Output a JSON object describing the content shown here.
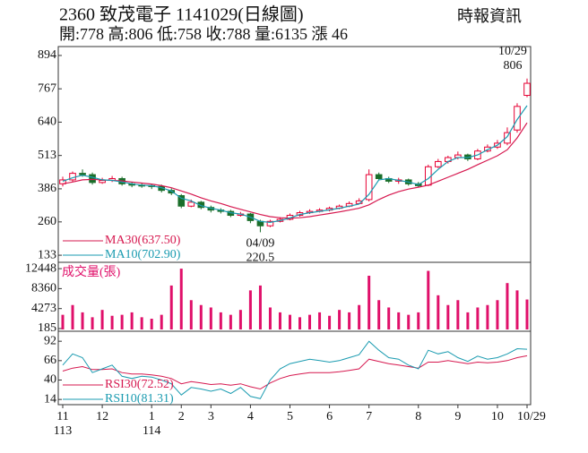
{
  "chart_data": [
    {
      "type": "candlestick",
      "title": "2360  致茂電子 1141029(日線圖)",
      "subtitle": "開:778 高:806 低:758 收:788 量:6135 漲 46",
      "source": "時報資訊",
      "categories": [
        "11",
        null,
        null,
        null,
        "12",
        null,
        null,
        null,
        null,
        "1",
        null,
        null,
        "2",
        null,
        null,
        "3",
        null,
        null,
        null,
        "4",
        null,
        null,
        null,
        "5",
        null,
        null,
        null,
        "6",
        null,
        null,
        null,
        "7",
        null,
        null,
        null,
        null,
        "8",
        null,
        null,
        null,
        "9",
        null,
        null,
        null,
        "10",
        null,
        null,
        "10/29"
      ],
      "year_labels": [
        {
          "index": 0,
          "label": "113"
        },
        {
          "index": 9,
          "label": "114"
        }
      ],
      "open": [
        405,
        420,
        445,
        440,
        410,
        418,
        425,
        405,
        400,
        398,
        395,
        380,
        360,
        320,
        335,
        315,
        305,
        300,
        285,
        290,
        262,
        245,
        262,
        270,
        285,
        295,
        300,
        305,
        312,
        320,
        330,
        345,
        440,
        425,
        415,
        420,
        405,
        400,
        470,
        490,
        505,
        515,
        500,
        530,
        545,
        560,
        610,
        742
      ],
      "high": [
        432,
        452,
        460,
        448,
        428,
        435,
        432,
        412,
        408,
        405,
        402,
        388,
        366,
        345,
        340,
        322,
        312,
        306,
        298,
        294,
        268,
        268,
        278,
        292,
        302,
        308,
        312,
        318,
        326,
        338,
        350,
        460,
        448,
        432,
        428,
        425,
        412,
        478,
        500,
        512,
        528,
        520,
        538,
        555,
        572,
        620,
        712,
        806
      ],
      "low": [
        395,
        412,
        432,
        402,
        405,
        412,
        398,
        392,
        390,
        385,
        372,
        362,
        312,
        316,
        308,
        296,
        292,
        278,
        280,
        255,
        220.5,
        240,
        258,
        266,
        280,
        290,
        296,
        300,
        308,
        316,
        332,
        338,
        418,
        408,
        405,
        398,
        392,
        396,
        465,
        482,
        498,
        492,
        495,
        525,
        538,
        552,
        600,
        735
      ],
      "close": [
        420,
        445,
        440,
        410,
        418,
        425,
        405,
        400,
        398,
        395,
        380,
        370,
        320,
        335,
        315,
        305,
        300,
        285,
        290,
        265,
        245,
        262,
        270,
        285,
        295,
        300,
        305,
        312,
        320,
        330,
        340,
        440,
        425,
        415,
        420,
        405,
        398,
        470,
        490,
        505,
        515,
        500,
        530,
        545,
        560,
        600,
        700,
        788
      ],
      "up_color": "#e60033",
      "down_color": "#1a6e2a",
      "series": [
        {
          "name": "MA30(637.50)",
          "color": "#d6184f",
          "values": [
            405,
            412,
            420,
            422,
            420,
            418,
            416,
            412,
            408,
            404,
            398,
            390,
            378,
            366,
            352,
            340,
            330,
            318,
            308,
            298,
            288,
            280,
            276,
            274,
            276,
            280,
            286,
            292,
            298,
            305,
            312,
            325,
            345,
            362,
            375,
            385,
            392,
            400,
            415,
            430,
            445,
            460,
            478,
            495,
            512,
            535,
            580,
            637.5
          ]
        },
        {
          "name": "MA10(702.90)",
          "color": "#1a9bb0",
          "values": [
            415,
            428,
            438,
            430,
            420,
            418,
            412,
            405,
            400,
            398,
            390,
            378,
            350,
            340,
            322,
            312,
            305,
            295,
            290,
            278,
            262,
            258,
            265,
            275,
            288,
            295,
            300,
            306,
            312,
            320,
            328,
            365,
            420,
            425,
            418,
            412,
            402,
            425,
            460,
            490,
            505,
            505,
            515,
            535,
            552,
            585,
            650,
            702.9
          ]
        }
      ],
      "annotations": [
        {
          "date": "10/29",
          "value": 806
        },
        {
          "date": "04/09",
          "value": 220.5
        }
      ],
      "ylim": [
        106,
        928
      ],
      "yticks": [
        133,
        260,
        386,
        513,
        640,
        767,
        894
      ]
    },
    {
      "type": "bar",
      "label": "成交量(張)",
      "color": "#e0106a",
      "values": [
        3000,
        5000,
        3500,
        2500,
        4000,
        2800,
        3000,
        3500,
        2500,
        2200,
        3000,
        9000,
        12448,
        6000,
        5000,
        4500,
        3500,
        3000,
        4000,
        8000,
        9000,
        4500,
        3500,
        3000,
        2500,
        3000,
        3500,
        2800,
        4000,
        3500,
        5000,
        11000,
        6000,
        4500,
        3500,
        3000,
        3500,
        12000,
        7000,
        5000,
        6000,
        3500,
        4500,
        5000,
        6000,
        9500,
        8000,
        6135
      ],
      "ylim": [
        0,
        13750
      ],
      "yticks": [
        185,
        4273,
        8360,
        12448
      ]
    },
    {
      "type": "line",
      "series": [
        {
          "name": "RSI30(72.52)",
          "color": "#d6184f",
          "values": [
            52,
            56,
            58,
            54,
            54,
            55,
            50,
            48,
            48,
            47,
            45,
            42,
            35,
            38,
            36,
            34,
            35,
            33,
            35,
            31,
            28,
            36,
            42,
            46,
            48,
            50,
            50,
            50,
            51,
            53,
            55,
            68,
            65,
            62,
            60,
            58,
            56,
            64,
            64,
            66,
            64,
            62,
            64,
            63,
            64,
            66,
            70,
            72.52
          ]
        },
        {
          "name": "RSI10(81.31)",
          "color": "#1a9bb0",
          "values": [
            60,
            75,
            70,
            50,
            55,
            60,
            45,
            42,
            45,
            44,
            40,
            35,
            20,
            30,
            28,
            25,
            28,
            22,
            30,
            18,
            15,
            40,
            55,
            62,
            65,
            68,
            66,
            64,
            66,
            70,
            74,
            92,
            80,
            70,
            68,
            60,
            55,
            80,
            75,
            78,
            70,
            65,
            72,
            68,
            70,
            75,
            82,
            81.31
          ]
        }
      ],
      "ylim": [
        7,
        103
      ],
      "yticks": [
        14,
        40,
        66,
        92
      ]
    }
  ]
}
